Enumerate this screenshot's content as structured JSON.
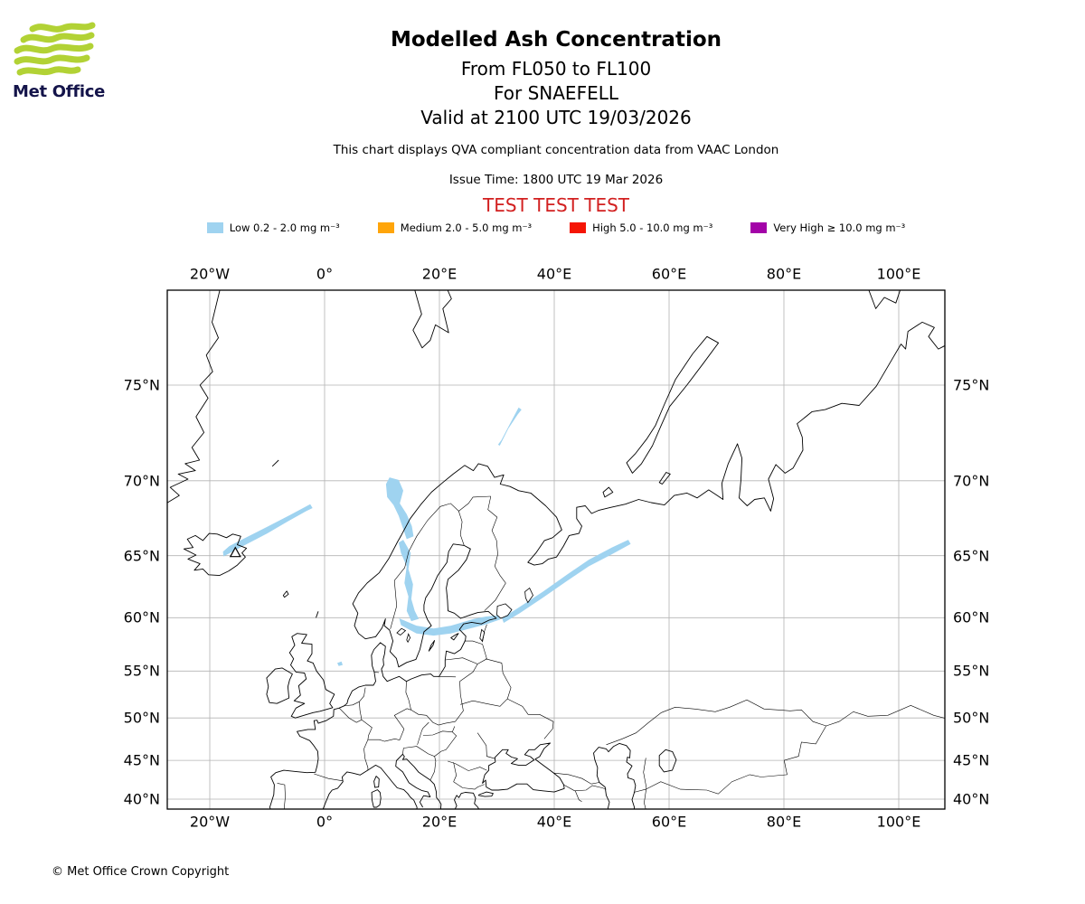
{
  "logo": {
    "text": "Met Office"
  },
  "header": {
    "title": "Modelled Ash Concentration",
    "subtitle_fl": "From FL050 to FL100",
    "subtitle_volcano": "For SNAEFELL",
    "subtitle_valid": "Valid at 2100 UTC 19/03/2026",
    "note": "This chart displays QVA compliant concentration data from VAAC London",
    "issue_time": "Issue Time: 1800 UTC 19 Mar 2026",
    "test_banner": "TEST TEST TEST",
    "test_color": "#d22020"
  },
  "legend": {
    "items": [
      {
        "name": "low",
        "label": "Low 0.2 - 2.0 mg m⁻³",
        "color": "#9fd3f0"
      },
      {
        "name": "medium",
        "label": "Medium 2.0 - 5.0 mg m⁻³",
        "color": "#ffa50a"
      },
      {
        "name": "high",
        "label": "High 5.0 - 10.0 mg m⁻³",
        "color": "#f51505"
      },
      {
        "name": "very-high",
        "label": "Very High ≥ 10.0 mg m⁻³",
        "color": "#a303a8"
      }
    ]
  },
  "map": {
    "top_labels": [
      "20°W",
      "0°",
      "20°E",
      "40°E",
      "60°E",
      "80°E",
      "100°E"
    ],
    "bottom_labels": [
      "20°W",
      "0°",
      "20°E",
      "40°E",
      "60°E",
      "80°E",
      "100°E"
    ],
    "left_labels": [
      "75°N",
      "70°N",
      "65°N",
      "60°N",
      "55°N",
      "50°N",
      "45°N",
      "40°N"
    ],
    "right_labels": [
      "75°N",
      "70°N",
      "65°N",
      "60°N",
      "55°N",
      "50°N",
      "45°N",
      "40°N"
    ],
    "lon_ticks_deg": [
      -20,
      0,
      20,
      40,
      60,
      80,
      100
    ],
    "lat_ticks_deg": [
      75,
      70,
      65,
      60,
      55,
      50,
      45,
      40
    ],
    "grid_color": "#b3b3b3",
    "coast_color": "#000000",
    "ash_low_color": "#9fd3f0",
    "volcano": {
      "name": "SNAEFELL"
    }
  },
  "footer": {
    "copyright": "© Met Office Crown Copyright"
  }
}
